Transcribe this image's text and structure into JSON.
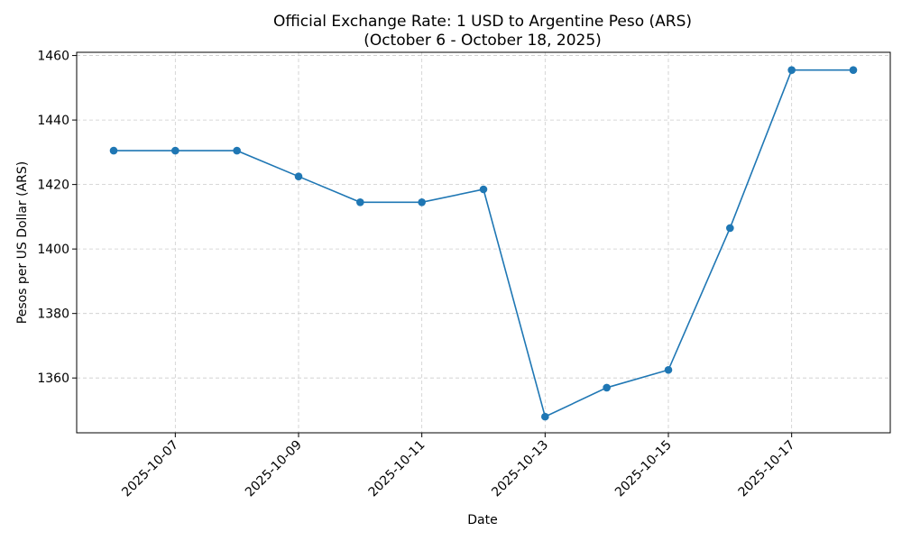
{
  "chart_data": {
    "type": "line",
    "title_line1": "Official Exchange Rate: 1 USD to Argentine Peso (ARS)",
    "title_line2": "(October 6 - October 18, 2025)",
    "xlabel": "Date",
    "ylabel": "Pesos per US Dollar (ARS)",
    "x": [
      "2025-10-06",
      "2025-10-07",
      "2025-10-08",
      "2025-10-09",
      "2025-10-10",
      "2025-10-11",
      "2025-10-12",
      "2025-10-13",
      "2025-10-14",
      "2025-10-15",
      "2025-10-16",
      "2025-10-17",
      "2025-10-18"
    ],
    "series": [
      {
        "values": [
          1430.5,
          1430.5,
          1430.5,
          1422.5,
          1414.5,
          1414.5,
          1418.5,
          1348,
          1357,
          1362.5,
          1406.5,
          1455.5,
          1455.5
        ]
      }
    ],
    "ylim": [
      1343,
      1461
    ],
    "yticks": [
      1360,
      1380,
      1400,
      1420,
      1440,
      1460
    ],
    "xticks": [
      "2025-10-07",
      "2025-10-09",
      "2025-10-11",
      "2025-10-13",
      "2025-10-15",
      "2025-10-17"
    ],
    "grid": true,
    "line_color": "#1f77b4"
  }
}
